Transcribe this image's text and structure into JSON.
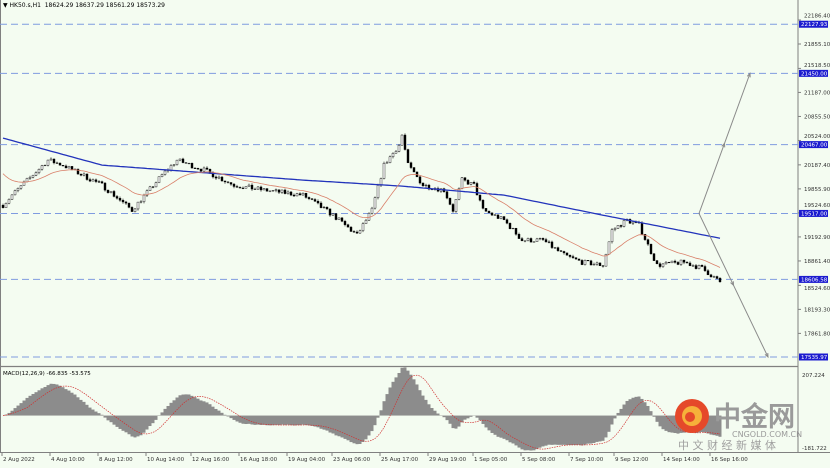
{
  "header": {
    "symbol_label": "HK50.s,H1",
    "ohlc": "18624.29 18637.29 18561.29 18573.29"
  },
  "colors": {
    "background": "#f4fcf1",
    "level_line": "#7f9be0",
    "level_label_bg": "#1c1ccf",
    "ma_slow": "#2233bb",
    "ma_fast": "#d9806a",
    "candle": "#000000",
    "macd_hist": "#8c8c8c",
    "macd_signal": "#d03030",
    "projection": "#8a8a8a"
  },
  "macd": {
    "label": "MACD(12,26,9) -66.835 -53.575",
    "axis_top": "207.224",
    "axis_bottom": "-181.722"
  },
  "watermark": {
    "brand_cn": "中金网",
    "brand_en": "CNGOLD.COM.CN",
    "tagline": "中 文 财 经 新 媒 体"
  },
  "chart_data": {
    "type": "candlestick",
    "timeframe": "H1",
    "ylim": [
      17535.97,
      22186.4
    ],
    "price_ticks": [
      "22186.40",
      "21855.10",
      "21518.50",
      "21187.00",
      "20855.50",
      "20524.00",
      "20187.40",
      "19855.90",
      "19524.60",
      "19192.90",
      "18861.40",
      "18524.60",
      "18193.30",
      "17861.80"
    ],
    "price_tick_values": [
      22186.4,
      21855.1,
      21518.5,
      21187.0,
      20855.5,
      20524.0,
      20187.4,
      19855.9,
      19524.6,
      19192.9,
      18861.4,
      18524.6,
      18193.3,
      17861.8
    ],
    "levels": [
      {
        "label": "22127.93",
        "value": 22127.93
      },
      {
        "label": "21450.00",
        "value": 21450.0
      },
      {
        "label": "20467.00",
        "value": 20467.0
      },
      {
        "label": "19517.00",
        "value": 19517.0
      },
      {
        "label": "18606.58",
        "value": 18606.58
      },
      {
        "label": "17535.97",
        "value": 17535.97
      }
    ],
    "time_labels": [
      {
        "label": "2 Aug 2022",
        "bar": 0
      },
      {
        "label": "4 Aug 10:00",
        "bar": 16
      },
      {
        "label": "8 Aug 12:00",
        "bar": 32
      },
      {
        "label": "10 Aug 14:00",
        "bar": 48
      },
      {
        "label": "12 Aug 16:00",
        "bar": 63
      },
      {
        "label": "16 Aug 18:00",
        "bar": 79
      },
      {
        "label": "19 Aug 04:00",
        "bar": 95
      },
      {
        "label": "23 Aug 06:00",
        "bar": 110
      },
      {
        "label": "25 Aug 17:00",
        "bar": 126
      },
      {
        "label": "29 Aug 19:00",
        "bar": 142
      },
      {
        "label": "1 Sep 05:00",
        "bar": 157
      },
      {
        "label": "5 Sep 08:00",
        "bar": 173
      },
      {
        "label": "7 Sep 10:00",
        "bar": 189
      },
      {
        "label": "9 Sep 12:00",
        "bar": 204
      },
      {
        "label": "14 Sep 14:00",
        "bar": 220
      },
      {
        "label": "16 Sep 16:00",
        "bar": 236
      }
    ],
    "bar_count": 240,
    "close_path": [
      [
        0,
        19631
      ],
      [
        3,
        19770
      ],
      [
        15,
        20253
      ],
      [
        20,
        20184
      ],
      [
        33,
        19908
      ],
      [
        43,
        19562
      ],
      [
        53,
        20046
      ],
      [
        58,
        20253
      ],
      [
        67,
        20115
      ],
      [
        77,
        19908
      ],
      [
        87,
        19839
      ],
      [
        100,
        19770
      ],
      [
        110,
        19493
      ],
      [
        118,
        19217
      ],
      [
        123,
        19562
      ],
      [
        127,
        20184
      ],
      [
        132,
        20460
      ],
      [
        133,
        20598
      ],
      [
        135,
        20184
      ],
      [
        140,
        19908
      ],
      [
        147,
        19839
      ],
      [
        150,
        19562
      ],
      [
        153,
        19977
      ],
      [
        157,
        19908
      ],
      [
        160,
        19562
      ],
      [
        167,
        19424
      ],
      [
        173,
        19148
      ],
      [
        180,
        19148
      ],
      [
        187,
        18941
      ],
      [
        193,
        18844
      ],
      [
        200,
        18803
      ],
      [
        203,
        19286
      ],
      [
        208,
        19424
      ],
      [
        212,
        19355
      ],
      [
        215,
        19079
      ],
      [
        218,
        18803
      ],
      [
        227,
        18844
      ],
      [
        233,
        18761
      ],
      [
        239,
        18573.29
      ]
    ],
    "last_ohlc": {
      "open": 18624.29,
      "high": 18637.29,
      "low": 18561.29,
      "close": 18573.29
    },
    "ma_slow_path": [
      [
        0,
        20557
      ],
      [
        33,
        20184
      ],
      [
        100,
        19977
      ],
      [
        133,
        19894
      ],
      [
        167,
        19770
      ],
      [
        200,
        19493
      ],
      [
        239,
        19175
      ]
    ],
    "projection_path": [
      [
        21450,
        249
      ],
      [
        19517,
        232
      ],
      [
        17535.97,
        255
      ]
    ]
  }
}
